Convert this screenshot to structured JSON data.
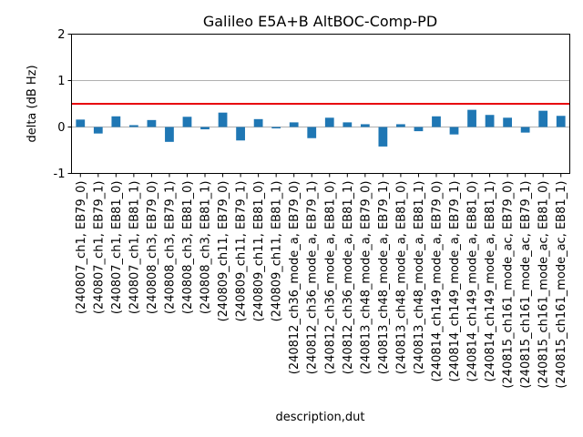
{
  "chart_data": {
    "type": "bar",
    "title": "Galileo E5A+B AltBOC-Comp-PD",
    "xlabel": "description,dut",
    "ylabel": "delta (dB Hz)",
    "ylim": [
      -1,
      2
    ],
    "yticks": [
      -1,
      0,
      1,
      2
    ],
    "grid_y_lines": [
      0,
      1
    ],
    "threshold": 0.5,
    "bar_color": "#1f77b4",
    "threshold_color": "#e8000b",
    "grid_color": "#b0b0b0",
    "categories": [
      "(240807_ch1, EB79_0)",
      "(240807_ch1, EB79_1)",
      "(240807_ch1, EB81_0)",
      "(240807_ch1, EB81_1)",
      "(240808_ch3, EB79_0)",
      "(240808_ch3, EB79_1)",
      "(240808_ch3, EB81_0)",
      "(240808_ch3, EB81_1)",
      "(240809_ch11, EB79_0)",
      "(240809_ch11, EB79_1)",
      "(240809_ch11, EB81_0)",
      "(240809_ch11, EB81_1)",
      "(240812_ch36_mode_a, EB79_0)",
      "(240812_ch36_mode_a, EB79_1)",
      "(240812_ch36_mode_a, EB81_0)",
      "(240812_ch36_mode_a, EB81_1)",
      "(240813_ch48_mode_a, EB79_0)",
      "(240813_ch48_mode_a, EB79_1)",
      "(240813_ch48_mode_a, EB81_0)",
      "(240813_ch48_mode_a, EB81_1)",
      "(240814_ch149_mode_a, EB79_0)",
      "(240814_ch149_mode_a, EB79_1)",
      "(240814_ch149_mode_a, EB81_0)",
      "(240814_ch149_mode_a, EB81_1)",
      "(240815_ch161_mode_ac, EB79_0)",
      "(240815_ch161_mode_ac, EB79_1)",
      "(240815_ch161_mode_ac, EB81_0)",
      "(240815_ch161_mode_ac, EB81_1)"
    ],
    "values": [
      0.16,
      -0.14,
      0.23,
      0.04,
      0.15,
      -0.32,
      0.22,
      -0.05,
      0.31,
      -0.29,
      0.17,
      -0.03,
      0.1,
      -0.24,
      0.2,
      0.1,
      0.06,
      -0.42,
      0.06,
      -0.09,
      0.23,
      -0.16,
      0.37,
      0.26,
      0.2,
      -0.12,
      0.35,
      0.24
    ]
  }
}
